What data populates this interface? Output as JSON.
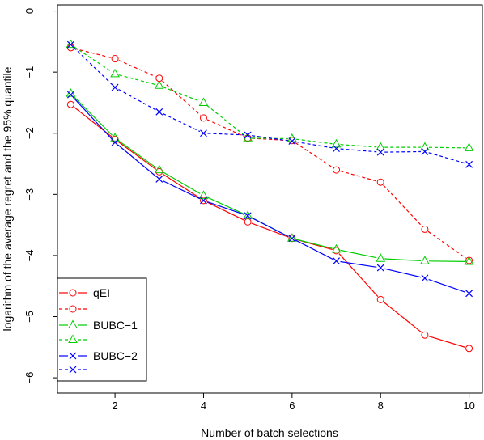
{
  "chart_data": {
    "type": "line",
    "title": "",
    "xlabel": "Number of batch selections",
    "ylabel": "logarithm of the average regret and the 95% quantile",
    "xlim": [
      0.7,
      10.3
    ],
    "ylim": [
      -6.25,
      0.1
    ],
    "x_ticks": [
      2,
      4,
      6,
      8,
      10
    ],
    "y_ticks": [
      0,
      -1,
      -2,
      -3,
      -4,
      -5,
      -6
    ],
    "x_tick_labels": [
      "2",
      "4",
      "6",
      "8",
      "10"
    ],
    "y_tick_labels": [
      "0",
      "−1",
      "−2",
      "−3",
      "−4",
      "−5",
      "−6"
    ],
    "grid": false,
    "legend_position": "bottom-left",
    "x": [
      1,
      2,
      3,
      4,
      5,
      6,
      7,
      8,
      9,
      10
    ],
    "series": [
      {
        "name": "qEI",
        "color": "#ff0000",
        "dash": "solid",
        "marker": "circle",
        "values": [
          -1.53,
          -2.1,
          -2.63,
          -3.1,
          -3.45,
          -3.72,
          -3.92,
          -4.72,
          -5.3,
          -5.52
        ]
      },
      {
        "name": "",
        "color": "#ff0000",
        "dash": "dashed",
        "marker": "circle",
        "values": [
          -0.6,
          -0.78,
          -1.1,
          -1.75,
          -2.08,
          -2.12,
          -2.6,
          -2.8,
          -3.57,
          -4.08
        ]
      },
      {
        "name": "BUBC−1",
        "color": "#00cd00",
        "dash": "solid",
        "marker": "triangle",
        "values": [
          -1.35,
          -2.08,
          -2.6,
          -3.02,
          -3.35,
          -3.72,
          -3.9,
          -4.05,
          -4.09,
          -4.1
        ]
      },
      {
        "name": "",
        "color": "#00cd00",
        "dash": "dashed",
        "marker": "triangle",
        "values": [
          -0.55,
          -1.03,
          -1.22,
          -1.5,
          -2.08,
          -2.09,
          -2.18,
          -2.23,
          -2.23,
          -2.24
        ]
      },
      {
        "name": "BUBC−2",
        "color": "#0000ff",
        "dash": "solid",
        "marker": "cross",
        "values": [
          -1.37,
          -2.15,
          -2.75,
          -3.1,
          -3.35,
          -3.72,
          -4.09,
          -4.2,
          -4.37,
          -4.62
        ]
      },
      {
        "name": "",
        "color": "#0000ff",
        "dash": "dashed",
        "marker": "cross",
        "values": [
          -0.55,
          -1.25,
          -1.65,
          -2.0,
          -2.03,
          -2.13,
          -2.25,
          -2.31,
          -2.3,
          -2.51
        ]
      }
    ]
  }
}
